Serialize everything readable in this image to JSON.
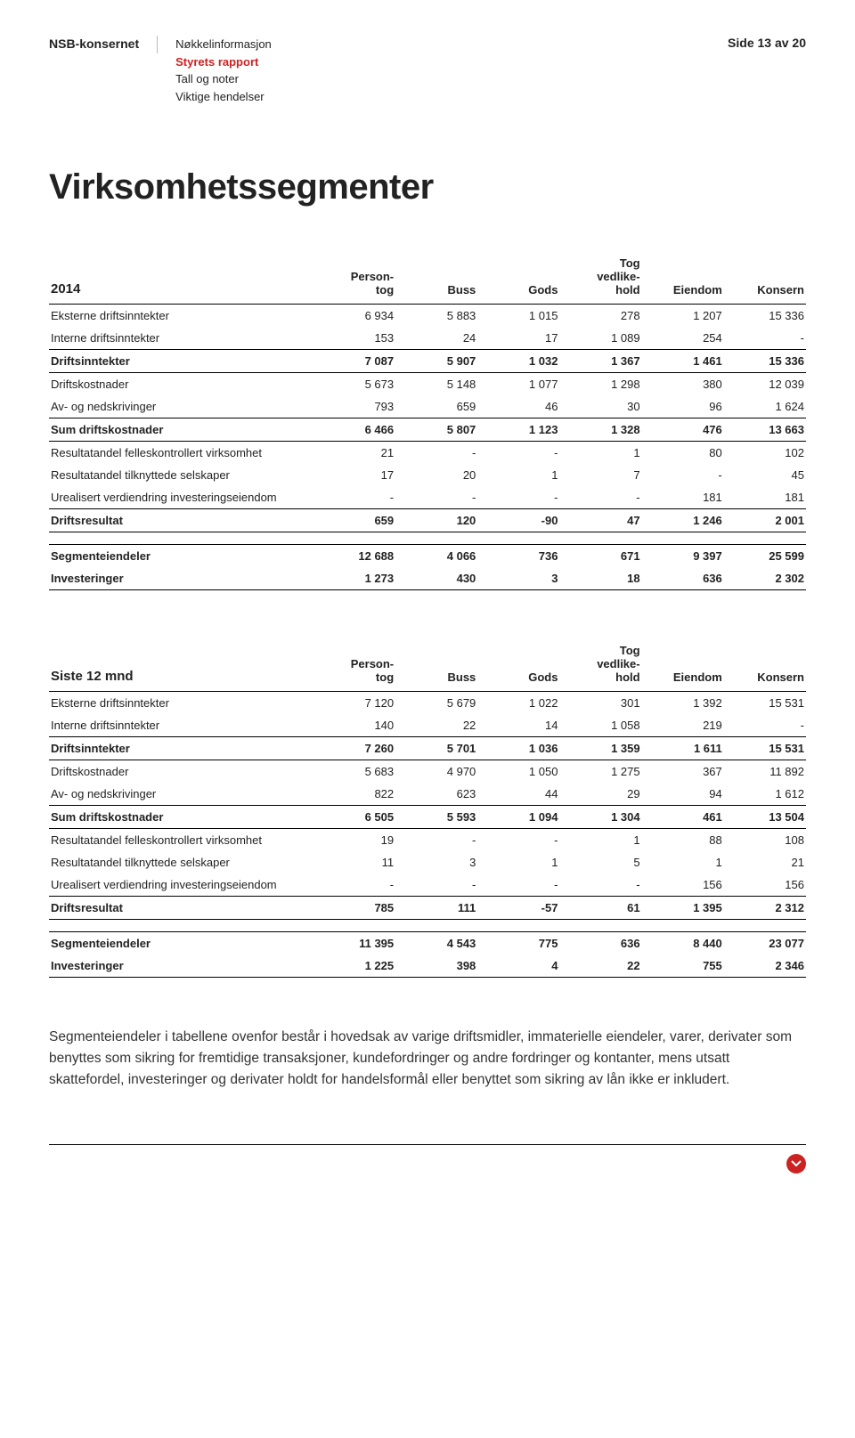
{
  "header": {
    "company": "NSB-konsernet",
    "nav": [
      "Nøkkelinformasjon",
      "Styrets rapport",
      "Tall og noter",
      "Viktige hendelser"
    ],
    "nav_active_index": 1,
    "page_label": "Side 13 av 20"
  },
  "title": "Virksomhetssegmenter",
  "columns": [
    "Person-\ntog",
    "Buss",
    "Gods",
    "Tog\nvedlike-\nhold",
    "Eiendom",
    "Konsern"
  ],
  "table1": {
    "year": "2014",
    "rows": [
      {
        "label": "Eksterne driftsinntekter",
        "v": [
          "6 934",
          "5 883",
          "1 015",
          "278",
          "1 207",
          "15 336"
        ],
        "bold": false,
        "line": false
      },
      {
        "label": "Interne driftsinntekter",
        "v": [
          "153",
          "24",
          "17",
          "1 089",
          "254",
          "-"
        ],
        "bold": false,
        "line": true
      },
      {
        "label": "Driftsinntekter",
        "v": [
          "7 087",
          "5 907",
          "1 032",
          "1 367",
          "1 461",
          "15 336"
        ],
        "bold": true,
        "line": true
      },
      {
        "label": "Driftskostnader",
        "v": [
          "5 673",
          "5 148",
          "1 077",
          "1 298",
          "380",
          "12 039"
        ],
        "bold": false,
        "line": false
      },
      {
        "label": "Av- og nedskrivinger",
        "v": [
          "793",
          "659",
          "46",
          "30",
          "96",
          "1 624"
        ],
        "bold": false,
        "line": true
      },
      {
        "label": "Sum driftskostnader",
        "v": [
          "6 466",
          "5 807",
          "1 123",
          "1 328",
          "476",
          "13 663"
        ],
        "bold": true,
        "line": true
      },
      {
        "label": "Resultatandel felleskontrollert virksomhet",
        "v": [
          "21",
          "-",
          "-",
          "1",
          "80",
          "102"
        ],
        "bold": false,
        "line": false
      },
      {
        "label": "Resultatandel tilknyttede selskaper",
        "v": [
          "17",
          "20",
          "1",
          "7",
          "-",
          "45"
        ],
        "bold": false,
        "line": false
      },
      {
        "label": "Urealisert verdiendring investeringseiendom",
        "v": [
          "-",
          "-",
          "-",
          "-",
          "181",
          "181"
        ],
        "bold": false,
        "line": true
      },
      {
        "label": "Driftsresultat",
        "v": [
          "659",
          "120",
          "-90",
          "47",
          "1 246",
          "2 001"
        ],
        "bold": true,
        "line": true
      }
    ],
    "rows2": [
      {
        "label": "Segmenteiendeler",
        "v": [
          "12 688",
          "4 066",
          "736",
          "671",
          "9 397",
          "25 599"
        ],
        "bold": true,
        "line": false
      },
      {
        "label": "Investeringer",
        "v": [
          "1 273",
          "430",
          "3",
          "18",
          "636",
          "2 302"
        ],
        "bold": true,
        "line": true
      }
    ]
  },
  "table2": {
    "year": "Siste 12 mnd",
    "rows": [
      {
        "label": "Eksterne driftsinntekter",
        "v": [
          "7 120",
          "5 679",
          "1 022",
          "301",
          "1 392",
          "15 531"
        ],
        "bold": false,
        "line": false
      },
      {
        "label": "Interne driftsinntekter",
        "v": [
          "140",
          "22",
          "14",
          "1 058",
          "219",
          "-"
        ],
        "bold": false,
        "line": true
      },
      {
        "label": "Driftsinntekter",
        "v": [
          "7 260",
          "5 701",
          "1 036",
          "1 359",
          "1 611",
          "15 531"
        ],
        "bold": true,
        "line": true
      },
      {
        "label": "Driftskostnader",
        "v": [
          "5 683",
          "4 970",
          "1 050",
          "1 275",
          "367",
          "11 892"
        ],
        "bold": false,
        "line": false
      },
      {
        "label": "Av- og nedskrivinger",
        "v": [
          "822",
          "623",
          "44",
          "29",
          "94",
          "1 612"
        ],
        "bold": false,
        "line": true
      },
      {
        "label": "Sum driftskostnader",
        "v": [
          "6 505",
          "5 593",
          "1 094",
          "1 304",
          "461",
          "13 504"
        ],
        "bold": true,
        "line": true
      },
      {
        "label": "Resultatandel felleskontrollert virksomhet",
        "v": [
          "19",
          "-",
          "-",
          "1",
          "88",
          "108"
        ],
        "bold": false,
        "line": false
      },
      {
        "label": "Resultatandel tilknyttede selskaper",
        "v": [
          "11",
          "3",
          "1",
          "5",
          "1",
          "21"
        ],
        "bold": false,
        "line": false
      },
      {
        "label": "Urealisert verdiendring investeringseiendom",
        "v": [
          "-",
          "-",
          "-",
          "-",
          "156",
          "156"
        ],
        "bold": false,
        "line": true
      },
      {
        "label": "Driftsresultat",
        "v": [
          "785",
          "111",
          "-57",
          "61",
          "1 395",
          "2 312"
        ],
        "bold": true,
        "line": true
      }
    ],
    "rows2": [
      {
        "label": "Segmenteiendeler",
        "v": [
          "11 395",
          "4 543",
          "775",
          "636",
          "8 440",
          "23 077"
        ],
        "bold": true,
        "line": false
      },
      {
        "label": "Investeringer",
        "v": [
          "1 225",
          "398",
          "4",
          "22",
          "755",
          "2 346"
        ],
        "bold": true,
        "line": true
      }
    ]
  },
  "bodytext": "Segmenteiendeler i tabellene ovenfor består i hovedsak av varige driftsmidler, immaterielle eiendeler, varer, derivater som benyttes som sikring for fremtidige transaksjoner, kundefordringer og andre fordringer og kontanter, mens utsatt skattefordel, investeringer og derivater holdt for handelsformål eller benyttet som sikring av lån ikke er inkludert.",
  "colors": {
    "accent": "#c22222",
    "text": "#222222",
    "border": "#000000"
  }
}
